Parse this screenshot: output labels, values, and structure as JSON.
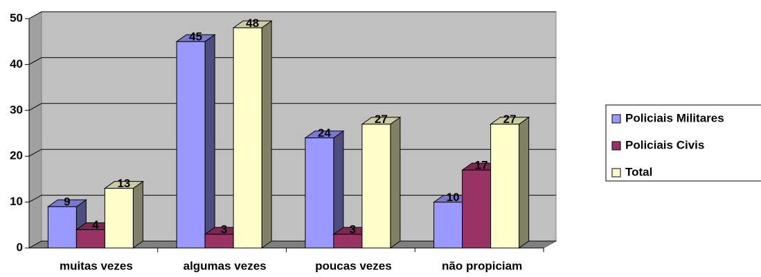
{
  "chart_data": {
    "type": "bar3d",
    "categories": [
      "muitas vezes",
      "algumas vezes",
      "poucas vezes",
      "não propiciam"
    ],
    "series": [
      {
        "name": "Policiais Militares",
        "color": "#9999ff",
        "values": [
          9,
          45,
          24,
          10
        ]
      },
      {
        "name": "Policiais Civis",
        "color": "#993366",
        "values": [
          4,
          3,
          3,
          17
        ]
      },
      {
        "name": "Total",
        "color": "#ffffcc",
        "values": [
          13,
          48,
          27,
          27
        ]
      }
    ],
    "ylim": [
      0,
      50
    ],
    "yticks": [
      0,
      10,
      20,
      30,
      40,
      50
    ],
    "grid": true,
    "legend": "right"
  }
}
